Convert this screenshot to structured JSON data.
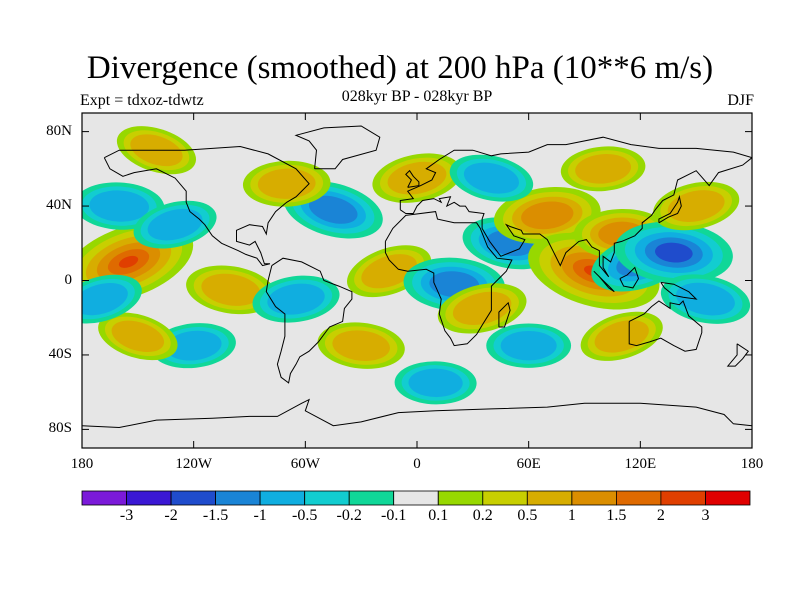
{
  "title": "Divergence (smoothed) at 200 hPa (10**6 m/s)",
  "experiment": "Expt = tdxoz-tdwtz",
  "subtitle": "028kyr BP - 028kyr BP",
  "season": "DJF",
  "map": {
    "projection": "cylindrical equidistant",
    "lon_range": [
      -180,
      180
    ],
    "lat_range": [
      -90,
      90
    ],
    "ocean_land_background": "#e6e6e6",
    "coastlines": true
  },
  "lat_ticks": [
    {
      "value": 80,
      "label": "80N"
    },
    {
      "value": 40,
      "label": "40N"
    },
    {
      "value": 0,
      "label": "0"
    },
    {
      "value": -40,
      "label": "40S"
    },
    {
      "value": -80,
      "label": "80S"
    }
  ],
  "lon_ticks": [
    {
      "value": -180,
      "label": "180"
    },
    {
      "value": -120,
      "label": "120W"
    },
    {
      "value": -60,
      "label": "60W"
    },
    {
      "value": 0,
      "label": "0"
    },
    {
      "value": 60,
      "label": "60E"
    },
    {
      "value": 120,
      "label": "120E"
    },
    {
      "value": 180,
      "label": "180"
    }
  ],
  "colorbar": {
    "colors": [
      "#7b1ad9",
      "#3a17d4",
      "#1f4ccc",
      "#1a84d6",
      "#10aee0",
      "#12cdd0",
      "#10d798",
      "#e6e6e6",
      "#97d800",
      "#c8cf00",
      "#d7ad00",
      "#db8e00",
      "#df6a00",
      "#e03f00",
      "#e00000"
    ],
    "labels": [
      "-3",
      "-2",
      "-1.5",
      "-1",
      "-0.5",
      "-0.2",
      "-0.1",
      "0.1",
      "0.2",
      "0.5",
      "1",
      "1.5",
      "2",
      "3"
    ]
  },
  "field_anomalies": [
    {
      "lon": -155,
      "lat": 10,
      "value": 2.4
    },
    {
      "lon": -160,
      "lat": 40,
      "value": -0.8
    },
    {
      "lon": -130,
      "lat": 30,
      "value": -0.6
    },
    {
      "lon": -100,
      "lat": -5,
      "value": 0.8
    },
    {
      "lon": -65,
      "lat": -10,
      "value": -0.7
    },
    {
      "lon": -45,
      "lat": 38,
      "value": -1.2
    },
    {
      "lon": -70,
      "lat": 52,
      "value": 0.7
    },
    {
      "lon": -15,
      "lat": 5,
      "value": 0.7
    },
    {
      "lon": 20,
      "lat": -2,
      "value": -1.2
    },
    {
      "lon": 35,
      "lat": -15,
      "value": 0.8
    },
    {
      "lon": 50,
      "lat": 20,
      "value": -1.0
    },
    {
      "lon": 70,
      "lat": 35,
      "value": 1.4
    },
    {
      "lon": 95,
      "lat": 5,
      "value": 2.4
    },
    {
      "lon": 110,
      "lat": 25,
      "value": 1.0
    },
    {
      "lon": 120,
      "lat": 10,
      "value": -1.2
    },
    {
      "lon": 138,
      "lat": 15,
      "value": -1.8
    },
    {
      "lon": 150,
      "lat": 40,
      "value": 0.7
    },
    {
      "lon": 155,
      "lat": -10,
      "value": -0.8
    },
    {
      "lon": -120,
      "lat": -35,
      "value": -0.6
    },
    {
      "lon": -150,
      "lat": -30,
      "value": 0.5
    },
    {
      "lon": 60,
      "lat": -35,
      "value": -0.6
    },
    {
      "lon": 110,
      "lat": -30,
      "value": 0.6
    },
    {
      "lon": -30,
      "lat": -35,
      "value": 0.7
    },
    {
      "lon": 0,
      "lat": 55,
      "value": 0.8
    },
    {
      "lon": 40,
      "lat": 55,
      "value": -0.6
    },
    {
      "lon": 100,
      "lat": 60,
      "value": 0.6
    },
    {
      "lon": -140,
      "lat": 70,
      "value": 0.5
    },
    {
      "lon": 10,
      "lat": -55,
      "value": -0.5
    },
    {
      "lon": -170,
      "lat": -10,
      "value": -0.6
    }
  ]
}
